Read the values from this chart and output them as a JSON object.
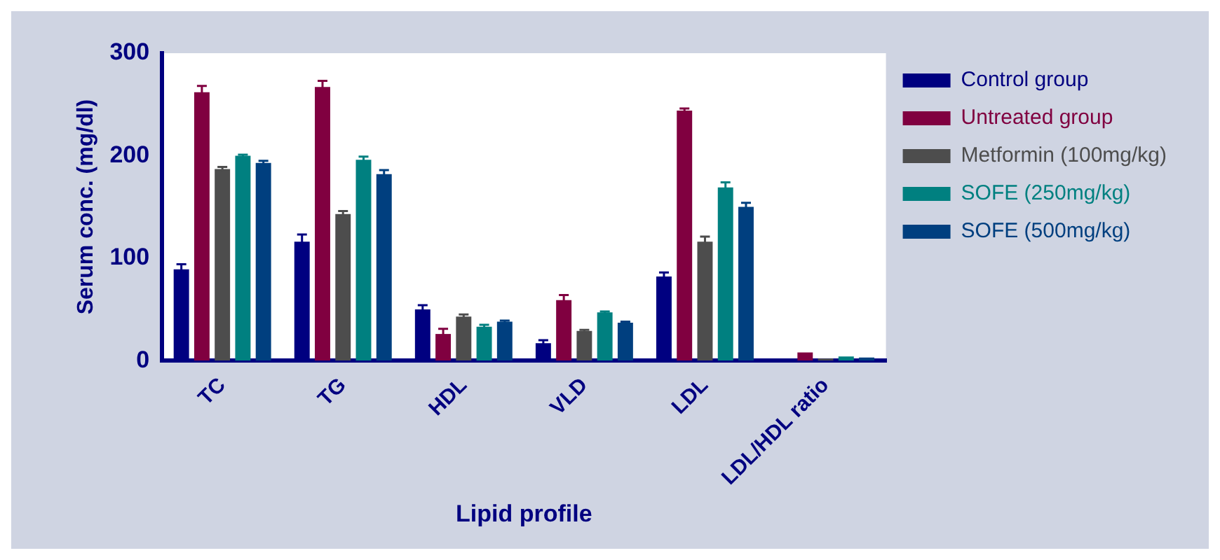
{
  "chart_data": {
    "type": "bar",
    "xlabel": "Lipid profile",
    "ylabel": "Serum conc. (mg/dl)",
    "categories": [
      "TC",
      "TG",
      "HDL",
      "VLD",
      "LDL",
      "LDL/HDL ratio"
    ],
    "series": [
      {
        "name": "Control group",
        "color": "#000080",
        "values": [
          89,
          116,
          50,
          17,
          82,
          1
        ],
        "errors": [
          5,
          7,
          4,
          3,
          4,
          null
        ]
      },
      {
        "name": "Untreated group",
        "color": "#800040",
        "values": [
          262,
          267,
          26,
          59,
          244,
          8
        ],
        "errors": [
          6,
          6,
          5,
          5,
          2,
          null
        ]
      },
      {
        "name": "Metformin (100mg/kg)",
        "color": "#4d4d4d",
        "values": [
          187,
          143,
          43,
          29,
          116,
          2
        ],
        "errors": [
          2,
          3,
          2,
          1,
          5,
          null
        ]
      },
      {
        "name": "SOFE (250mg/kg)",
        "color": "#008080",
        "values": [
          200,
          196,
          33,
          47,
          169,
          4
        ],
        "errors": [
          1,
          3,
          2,
          1,
          5,
          null
        ]
      },
      {
        "name": "SOFE (500mg/kg)",
        "color": "#003f7f",
        "values": [
          193,
          182,
          38,
          37,
          150,
          3
        ],
        "errors": [
          2,
          4,
          1,
          1,
          4,
          null
        ]
      }
    ],
    "ylim": [
      0,
      300
    ],
    "yticks": [
      0,
      100,
      200,
      300
    ],
    "grid": false,
    "legend": "top right"
  }
}
